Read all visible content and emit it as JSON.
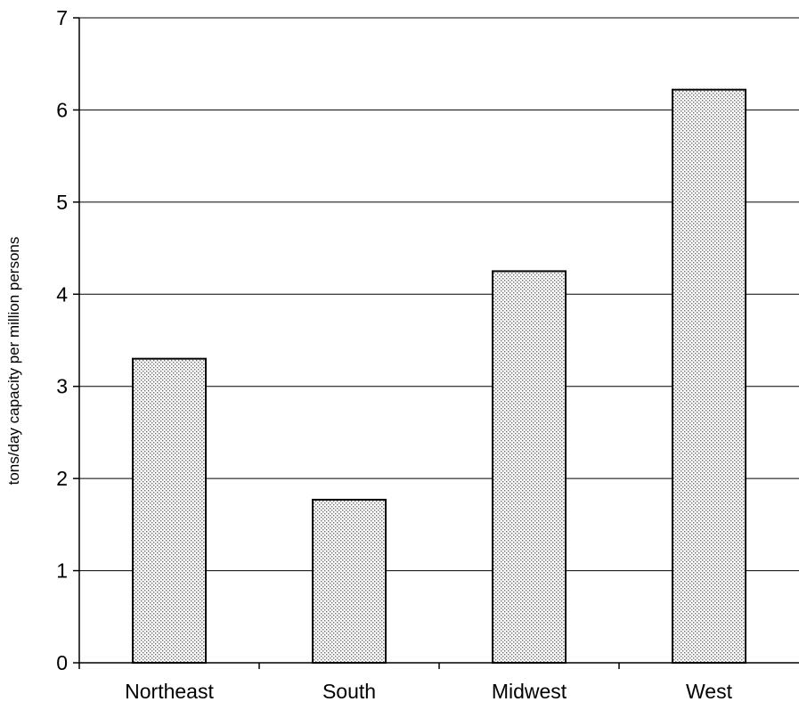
{
  "chart_data": {
    "type": "bar",
    "title": "",
    "xlabel": "",
    "ylabel": "tons/day capacity per million persons",
    "categories": [
      "Northeast",
      "South",
      "Midwest",
      "West"
    ],
    "values": [
      3.3,
      1.77,
      4.25,
      6.22
    ],
    "ylim": [
      0,
      7
    ],
    "yticks": [
      0,
      1,
      2,
      3,
      4,
      5,
      6,
      7
    ],
    "grid": true,
    "legend": "none",
    "bar_fill": "stippled light gray",
    "colors": {
      "bar_dots": "#6e6e6e",
      "bar_background": "#ffffff",
      "gridline": "#000000",
      "axis": "#000000"
    }
  }
}
